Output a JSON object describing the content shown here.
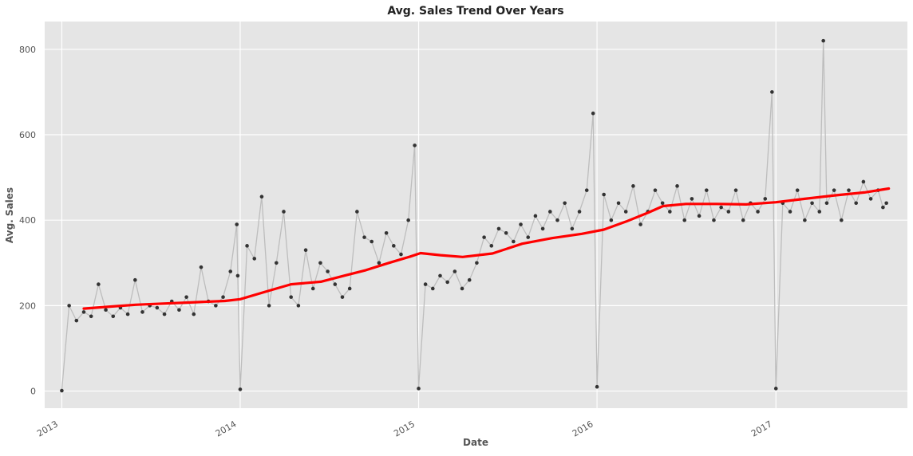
{
  "chart_data": {
    "type": "scatter",
    "title": "Avg. Sales Trend Over Years",
    "xlabel": "Date",
    "ylabel": "Avg. Sales",
    "x_ticks": [
      "2013",
      "2014",
      "2015",
      "2016",
      "2017"
    ],
    "y_ticks": [
      0,
      200,
      400,
      600,
      800
    ],
    "xlim": [
      "2012-11-27",
      "2017-09-27"
    ],
    "ylim": [
      -40,
      865
    ],
    "grid": true,
    "colors": {
      "background": "#e5e5e5",
      "grid": "#ffffff",
      "daily_points": "#333333",
      "daily_line": "#bdbdbd",
      "trend": "#ff0000"
    },
    "series": [
      {
        "kind": "daily",
        "note_style": "dark points joined by thin grey line",
        "x": [
          "2013-01-01",
          "2013-01-16",
          "2013-01-31",
          "2013-02-15",
          "2013-03-02",
          "2013-03-17",
          "2013-04-01",
          "2013-04-16",
          "2013-05-01",
          "2013-05-16",
          "2013-05-31",
          "2013-06-15",
          "2013-06-30",
          "2013-07-15",
          "2013-07-30",
          "2013-08-14",
          "2013-08-29",
          "2013-09-13",
          "2013-09-28",
          "2013-10-13",
          "2013-10-28",
          "2013-11-12",
          "2013-11-27",
          "2013-12-12",
          "2013-12-25",
          "2013-12-27",
          "2014-01-01",
          "2014-01-15",
          "2014-01-30",
          "2014-02-14",
          "2014-03-01",
          "2014-03-16",
          "2014-03-31",
          "2014-04-15",
          "2014-04-30",
          "2014-05-15",
          "2014-05-30",
          "2014-06-14",
          "2014-06-29",
          "2014-07-14",
          "2014-07-29",
          "2014-08-13",
          "2014-08-28",
          "2014-09-12",
          "2014-09-27",
          "2014-10-12",
          "2014-10-27",
          "2014-11-11",
          "2014-11-26",
          "2014-12-11",
          "2014-12-24",
          "2015-01-01",
          "2015-01-15",
          "2015-01-30",
          "2015-02-14",
          "2015-03-01",
          "2015-03-16",
          "2015-03-31",
          "2015-04-15",
          "2015-04-30",
          "2015-05-15",
          "2015-05-30",
          "2015-06-14",
          "2015-06-29",
          "2015-07-14",
          "2015-07-29",
          "2015-08-13",
          "2015-08-28",
          "2015-09-12",
          "2015-09-27",
          "2015-10-12",
          "2015-10-27",
          "2015-11-11",
          "2015-11-26",
          "2015-12-11",
          "2015-12-24",
          "2016-01-01",
          "2016-01-15",
          "2016-01-30",
          "2016-02-14",
          "2016-02-29",
          "2016-03-15",
          "2016-03-30",
          "2016-04-14",
          "2016-04-29",
          "2016-05-14",
          "2016-05-29",
          "2016-06-13",
          "2016-06-28",
          "2016-07-13",
          "2016-07-28",
          "2016-08-12",
          "2016-08-27",
          "2016-09-11",
          "2016-09-26",
          "2016-10-11",
          "2016-10-26",
          "2016-11-10",
          "2016-11-25",
          "2016-12-10",
          "2016-12-24",
          "2017-01-01",
          "2017-01-15",
          "2017-01-30",
          "2017-02-14",
          "2017-03-01",
          "2017-03-16",
          "2017-03-31",
          "2017-04-08",
          "2017-04-15",
          "2017-04-30",
          "2017-05-15",
          "2017-05-30",
          "2017-06-14",
          "2017-06-29",
          "2017-07-14",
          "2017-07-29",
          "2017-08-08",
          "2017-08-15"
        ],
        "y": [
          1,
          200,
          165,
          185,
          175,
          250,
          190,
          175,
          195,
          180,
          260,
          185,
          200,
          195,
          180,
          210,
          190,
          220,
          180,
          290,
          210,
          200,
          220,
          280,
          390,
          270,
          4,
          340,
          310,
          455,
          200,
          300,
          420,
          220,
          200,
          330,
          240,
          300,
          280,
          250,
          220,
          240,
          420,
          360,
          350,
          300,
          370,
          340,
          320,
          400,
          575,
          6,
          250,
          240,
          270,
          255,
          280,
          240,
          260,
          300,
          360,
          340,
          380,
          370,
          350,
          390,
          360,
          410,
          380,
          420,
          400,
          440,
          380,
          420,
          470,
          650,
          10,
          460,
          400,
          440,
          420,
          480,
          390,
          420,
          470,
          440,
          420,
          480,
          400,
          450,
          410,
          470,
          400,
          430,
          420,
          470,
          400,
          440,
          420,
          450,
          700,
          6,
          440,
          420,
          470,
          400,
          440,
          420,
          820,
          440,
          470,
          400,
          470,
          440,
          490,
          450,
          470,
          430,
          440
        ]
      },
      {
        "kind": "trend",
        "note_style": "thick red moving-average line",
        "x": [
          "2013-02-15",
          "2013-04-01",
          "2013-06-01",
          "2013-08-01",
          "2013-10-01",
          "2013-12-01",
          "2014-01-01",
          "2014-03-01",
          "2014-04-15",
          "2014-06-15",
          "2014-08-01",
          "2014-09-15",
          "2014-11-01",
          "2014-12-15",
          "2015-01-05",
          "2015-02-15",
          "2015-04-01",
          "2015-06-01",
          "2015-08-01",
          "2015-10-01",
          "2015-12-01",
          "2016-01-15",
          "2016-03-01",
          "2016-04-15",
          "2016-05-15",
          "2016-07-01",
          "2016-09-01",
          "2016-11-01",
          "2017-01-01",
          "2017-03-01",
          "2017-05-01",
          "2017-07-01",
          "2017-08-20"
        ],
        "y": [
          193,
          197,
          202,
          205,
          208,
          211,
          215,
          235,
          250,
          256,
          270,
          283,
          300,
          315,
          323,
          318,
          314,
          322,
          345,
          358,
          368,
          378,
          397,
          418,
          433,
          438,
          438,
          437,
          442,
          450,
          458,
          465,
          474
        ]
      }
    ]
  }
}
